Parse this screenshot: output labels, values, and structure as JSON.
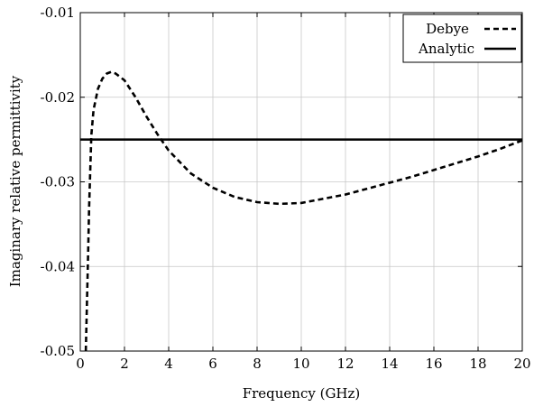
{
  "chart_data": {
    "type": "line",
    "xlabel": "Frequency (GHz)",
    "ylabel": "Imaginary relative permittivity",
    "xlim": [
      0,
      20
    ],
    "ylim": [
      -0.05,
      -0.01
    ],
    "xticks": [
      0,
      2,
      4,
      6,
      8,
      10,
      12,
      14,
      16,
      18,
      20
    ],
    "yticks": [
      -0.05,
      -0.04,
      -0.03,
      -0.02,
      -0.01
    ],
    "xtick_labels": [
      "0",
      "2",
      "4",
      "6",
      "8",
      "10",
      "12",
      "14",
      "16",
      "18",
      "20"
    ],
    "ytick_labels": [
      "-0.05",
      "-0.04",
      "-0.03",
      "-0.02",
      "-0.01"
    ],
    "grid": true,
    "legend_position": "top-right",
    "series": [
      {
        "name": "Debye",
        "style": "dashed",
        "color": "#000000",
        "x": [
          0.25,
          0.3,
          0.35,
          0.4,
          0.5,
          0.6,
          0.8,
          1.0,
          1.2,
          1.4,
          1.6,
          2.0,
          2.5,
          3.0,
          3.5,
          4.0,
          5.0,
          6.0,
          7.0,
          8.0,
          9.0,
          10.0,
          11.0,
          12.0,
          13.0,
          14.0,
          15.0,
          16.0,
          17.0,
          18.0,
          19.0,
          20.0
        ],
        "y": [
          -0.05,
          -0.0445,
          -0.039,
          -0.033,
          -0.0245,
          -0.0215,
          -0.019,
          -0.0178,
          -0.0172,
          -0.017,
          -0.0172,
          -0.018,
          -0.02,
          -0.0223,
          -0.0244,
          -0.0263,
          -0.029,
          -0.0307,
          -0.0318,
          -0.0324,
          -0.0326,
          -0.0325,
          -0.032,
          -0.0315,
          -0.0308,
          -0.0301,
          -0.0294,
          -0.0286,
          -0.0278,
          -0.027,
          -0.0261,
          -0.0251
        ]
      },
      {
        "name": "Analytic",
        "style": "solid",
        "color": "#000000",
        "x": [
          0,
          20
        ],
        "y": [
          -0.025,
          -0.025
        ]
      }
    ]
  }
}
